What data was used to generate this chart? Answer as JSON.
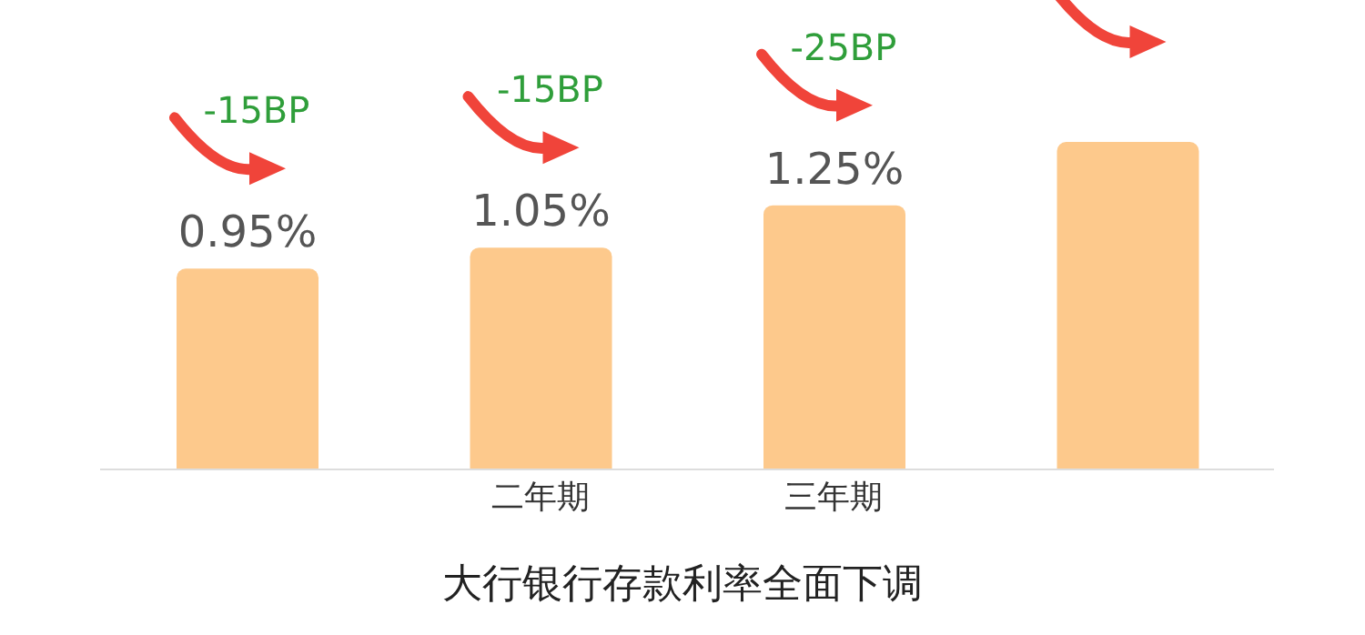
{
  "chart_data": {
    "type": "bar",
    "title": "大行银行存款利率全面下调",
    "categories": [
      null,
      "二年期",
      "三年期",
      null
    ],
    "values": [
      0.95,
      1.05,
      1.25,
      1.55
    ],
    "value_labels": [
      "0.95%",
      "1.05%",
      "1.25%",
      null
    ],
    "color": "#fdc98c",
    "annotations": [
      "-15BP",
      "-15BP",
      "-25BP"
    ],
    "grid": false,
    "legend": false
  }
}
